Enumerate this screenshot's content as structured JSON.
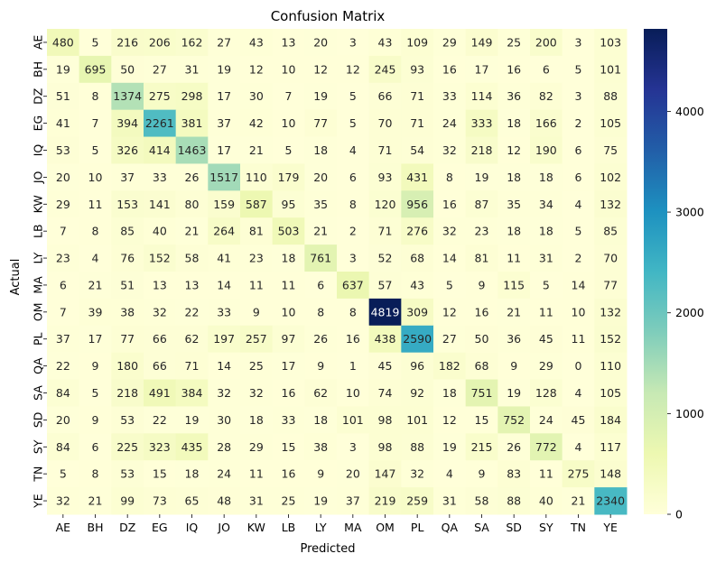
{
  "chart_data": {
    "type": "heatmap",
    "title": "Confusion Matrix",
    "xlabel": "Predicted",
    "ylabel": "Actual",
    "x_categories": [
      "AE",
      "BH",
      "DZ",
      "EG",
      "IQ",
      "JO",
      "KW",
      "LB",
      "LY",
      "MA",
      "OM",
      "PL",
      "QA",
      "SA",
      "SD",
      "SY",
      "TN",
      "YE"
    ],
    "y_categories": [
      "AE",
      "BH",
      "DZ",
      "EG",
      "IQ",
      "JO",
      "KW",
      "LB",
      "LY",
      "MA",
      "OM",
      "PL",
      "QA",
      "SA",
      "SD",
      "SY",
      "TN",
      "YE"
    ],
    "values": [
      [
        480,
        5,
        216,
        206,
        162,
        27,
        43,
        13,
        20,
        3,
        43,
        109,
        29,
        149,
        25,
        200,
        3,
        103
      ],
      [
        19,
        695,
        50,
        27,
        31,
        19,
        12,
        10,
        12,
        12,
        245,
        93,
        16,
        17,
        16,
        6,
        5,
        101
      ],
      [
        51,
        8,
        1374,
        275,
        298,
        17,
        30,
        7,
        19,
        5,
        66,
        71,
        33,
        114,
        36,
        82,
        3,
        88
      ],
      [
        41,
        7,
        394,
        2261,
        381,
        37,
        42,
        10,
        77,
        5,
        70,
        71,
        24,
        333,
        18,
        166,
        2,
        105
      ],
      [
        53,
        5,
        326,
        414,
        1463,
        17,
        21,
        5,
        18,
        4,
        71,
        54,
        32,
        218,
        12,
        190,
        6,
        75
      ],
      [
        20,
        10,
        37,
        33,
        26,
        1517,
        110,
        179,
        20,
        6,
        93,
        431,
        8,
        19,
        18,
        18,
        6,
        102
      ],
      [
        29,
        11,
        153,
        141,
        80,
        159,
        587,
        95,
        35,
        8,
        120,
        956,
        16,
        87,
        35,
        34,
        4,
        132
      ],
      [
        7,
        8,
        85,
        40,
        21,
        264,
        81,
        503,
        21,
        2,
        71,
        276,
        32,
        23,
        18,
        18,
        5,
        85
      ],
      [
        23,
        4,
        76,
        152,
        58,
        41,
        23,
        18,
        761,
        3,
        52,
        68,
        14,
        81,
        11,
        31,
        2,
        70
      ],
      [
        6,
        21,
        51,
        13,
        13,
        14,
        11,
        11,
        6,
        637,
        57,
        43,
        5,
        9,
        115,
        5,
        14,
        77
      ],
      [
        7,
        39,
        38,
        32,
        22,
        33,
        9,
        10,
        8,
        8,
        4819,
        309,
        12,
        16,
        21,
        11,
        10,
        132
      ],
      [
        37,
        17,
        77,
        66,
        62,
        197,
        257,
        97,
        26,
        16,
        438,
        2590,
        27,
        50,
        36,
        45,
        11,
        152
      ],
      [
        22,
        9,
        180,
        66,
        71,
        14,
        25,
        17,
        9,
        1,
        45,
        96,
        182,
        68,
        9,
        29,
        0,
        110
      ],
      [
        84,
        5,
        218,
        491,
        384,
        32,
        32,
        16,
        62,
        10,
        74,
        92,
        18,
        751,
        19,
        128,
        4,
        105
      ],
      [
        20,
        9,
        53,
        22,
        19,
        30,
        18,
        33,
        18,
        101,
        98,
        101,
        12,
        15,
        752,
        24,
        45,
        184
      ],
      [
        84,
        6,
        225,
        323,
        435,
        28,
        29,
        15,
        38,
        3,
        98,
        88,
        19,
        215,
        26,
        772,
        4,
        117
      ],
      [
        5,
        8,
        53,
        15,
        18,
        24,
        11,
        16,
        9,
        20,
        147,
        32,
        4,
        9,
        83,
        11,
        275,
        148
      ],
      [
        32,
        21,
        99,
        73,
        65,
        48,
        31,
        25,
        19,
        37,
        219,
        259,
        31,
        58,
        88,
        40,
        21,
        2340
      ]
    ],
    "colormap": "YlGnBu",
    "vmin": 0,
    "vmax": 4819,
    "colorbar_ticks": [
      0,
      1000,
      2000,
      3000,
      4000
    ],
    "annotations": true,
    "grid": false
  }
}
